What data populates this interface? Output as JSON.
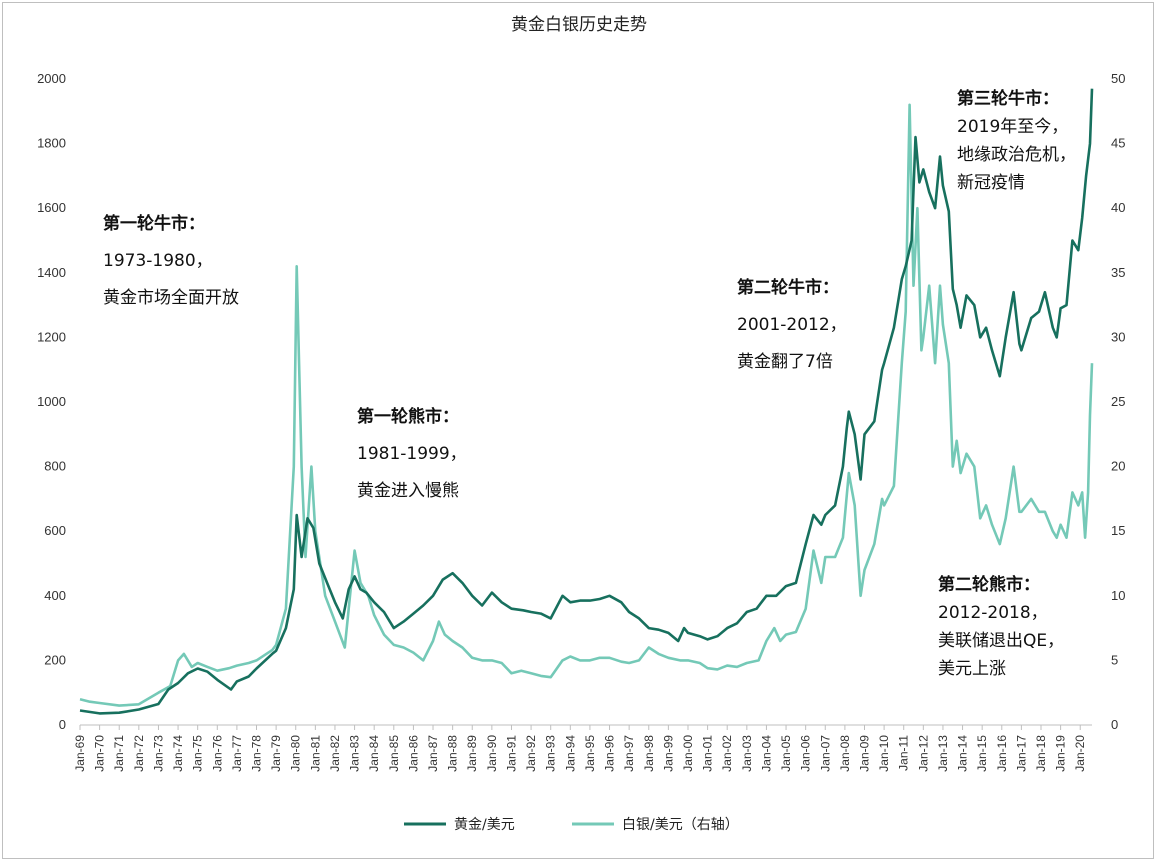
{
  "chart_data": {
    "type": "line",
    "title": "黄金白银历史走势",
    "xlabel": "",
    "ylabel": "",
    "x_range": [
      1969.0,
      2020.6
    ],
    "ylim_left": [
      0,
      2000
    ],
    "ylim_right": [
      0,
      50
    ],
    "y_ticks_left": [
      0,
      200,
      400,
      600,
      800,
      1000,
      1200,
      1400,
      1600,
      1800,
      2000
    ],
    "y_ticks_right": [
      0,
      5,
      10,
      15,
      20,
      25,
      30,
      35,
      40,
      45,
      50
    ],
    "x_tick_labels": [
      "Jan-69",
      "Jan-70",
      "Jan-71",
      "Jan-72",
      "Jan-73",
      "Jan-74",
      "Jan-75",
      "Jan-76",
      "Jan-77",
      "Jan-78",
      "Jan-79",
      "Jan-80",
      "Jan-81",
      "Jan-82",
      "Jan-83",
      "Jan-84",
      "Jan-85",
      "Jan-86",
      "Jan-87",
      "Jan-88",
      "Jan-89",
      "Jan-90",
      "Jan-91",
      "Jan-92",
      "Jan-93",
      "Jan-94",
      "Jan-95",
      "Jan-96",
      "Jan-97",
      "Jan-98",
      "Jan-99",
      "Jan-00",
      "Jan-01",
      "Jan-02",
      "Jan-03",
      "Jan-04",
      "Jan-05",
      "Jan-06",
      "Jan-07",
      "Jan-08",
      "Jan-09",
      "Jan-10",
      "Jan-11",
      "Jan-12",
      "Jan-13",
      "Jan-14",
      "Jan-15",
      "Jan-16",
      "Jan-17",
      "Jan-18",
      "Jan-19",
      "Jan-20"
    ],
    "legend_position": "bottom",
    "grid": false,
    "series": [
      {
        "name": "黄金/美元",
        "axis": "left",
        "color": "#17705e",
        "points": [
          [
            1969.0,
            45
          ],
          [
            1970.0,
            36
          ],
          [
            1971.0,
            38
          ],
          [
            1972.0,
            48
          ],
          [
            1973.0,
            65
          ],
          [
            1973.5,
            110
          ],
          [
            1974.0,
            130
          ],
          [
            1974.5,
            160
          ],
          [
            1975.0,
            175
          ],
          [
            1975.5,
            165
          ],
          [
            1976.0,
            140
          ],
          [
            1976.7,
            110
          ],
          [
            1977.0,
            135
          ],
          [
            1977.6,
            150
          ],
          [
            1978.0,
            175
          ],
          [
            1978.8,
            220
          ],
          [
            1979.0,
            230
          ],
          [
            1979.5,
            300
          ],
          [
            1979.9,
            420
          ],
          [
            1980.05,
            650
          ],
          [
            1980.3,
            520
          ],
          [
            1980.6,
            640
          ],
          [
            1980.9,
            610
          ],
          [
            1981.2,
            500
          ],
          [
            1981.6,
            440
          ],
          [
            1982.0,
            380
          ],
          [
            1982.4,
            330
          ],
          [
            1982.7,
            420
          ],
          [
            1983.0,
            460
          ],
          [
            1983.3,
            420
          ],
          [
            1983.6,
            410
          ],
          [
            1984.0,
            380
          ],
          [
            1984.5,
            350
          ],
          [
            1985.0,
            300
          ],
          [
            1985.5,
            320
          ],
          [
            1986.0,
            345
          ],
          [
            1986.5,
            370
          ],
          [
            1987.0,
            400
          ],
          [
            1987.5,
            450
          ],
          [
            1988.0,
            470
          ],
          [
            1988.5,
            440
          ],
          [
            1989.0,
            400
          ],
          [
            1989.5,
            370
          ],
          [
            1990.0,
            410
          ],
          [
            1990.5,
            380
          ],
          [
            1991.0,
            360
          ],
          [
            1991.6,
            355
          ],
          [
            1992.0,
            350
          ],
          [
            1992.5,
            345
          ],
          [
            1993.0,
            330
          ],
          [
            1993.6,
            400
          ],
          [
            1994.0,
            380
          ],
          [
            1994.5,
            385
          ],
          [
            1995.0,
            385
          ],
          [
            1995.5,
            390
          ],
          [
            1996.0,
            400
          ],
          [
            1996.6,
            380
          ],
          [
            1997.0,
            350
          ],
          [
            1997.5,
            330
          ],
          [
            1998.0,
            300
          ],
          [
            1998.5,
            295
          ],
          [
            1999.0,
            285
          ],
          [
            1999.5,
            260
          ],
          [
            1999.8,
            300
          ],
          [
            2000.0,
            285
          ],
          [
            2000.6,
            275
          ],
          [
            2001.0,
            265
          ],
          [
            2001.5,
            275
          ],
          [
            2002.0,
            300
          ],
          [
            2002.5,
            315
          ],
          [
            2003.0,
            350
          ],
          [
            2003.5,
            360
          ],
          [
            2004.0,
            400
          ],
          [
            2004.5,
            400
          ],
          [
            2005.0,
            430
          ],
          [
            2005.5,
            440
          ],
          [
            2006.0,
            560
          ],
          [
            2006.4,
            650
          ],
          [
            2006.8,
            620
          ],
          [
            2007.0,
            650
          ],
          [
            2007.5,
            680
          ],
          [
            2007.9,
            800
          ],
          [
            2008.1,
            920
          ],
          [
            2008.2,
            970
          ],
          [
            2008.5,
            900
          ],
          [
            2008.8,
            760
          ],
          [
            2009.0,
            900
          ],
          [
            2009.5,
            940
          ],
          [
            2009.9,
            1100
          ],
          [
            2010.0,
            1120
          ],
          [
            2010.5,
            1230
          ],
          [
            2010.9,
            1380
          ],
          [
            2011.1,
            1420
          ],
          [
            2011.4,
            1500
          ],
          [
            2011.6,
            1820
          ],
          [
            2011.8,
            1680
          ],
          [
            2012.0,
            1720
          ],
          [
            2012.3,
            1650
          ],
          [
            2012.6,
            1600
          ],
          [
            2012.85,
            1760
          ],
          [
            2013.0,
            1670
          ],
          [
            2013.3,
            1590
          ],
          [
            2013.5,
            1350
          ],
          [
            2013.7,
            1300
          ],
          [
            2013.9,
            1230
          ],
          [
            2014.2,
            1330
          ],
          [
            2014.6,
            1300
          ],
          [
            2014.9,
            1200
          ],
          [
            2015.2,
            1230
          ],
          [
            2015.5,
            1160
          ],
          [
            2015.9,
            1080
          ],
          [
            2016.2,
            1200
          ],
          [
            2016.6,
            1340
          ],
          [
            2016.9,
            1180
          ],
          [
            2017.0,
            1160
          ],
          [
            2017.5,
            1260
          ],
          [
            2017.9,
            1280
          ],
          [
            2018.2,
            1340
          ],
          [
            2018.6,
            1230
          ],
          [
            2018.8,
            1200
          ],
          [
            2019.0,
            1290
          ],
          [
            2019.3,
            1300
          ],
          [
            2019.6,
            1500
          ],
          [
            2019.9,
            1470
          ],
          [
            2020.1,
            1570
          ],
          [
            2020.3,
            1700
          ],
          [
            2020.5,
            1800
          ],
          [
            2020.6,
            1970
          ]
        ]
      },
      {
        "name": "白银/美元（右轴）",
        "axis": "right",
        "color": "#74c9b7",
        "points": [
          [
            1969.0,
            2.0
          ],
          [
            1969.5,
            1.8
          ],
          [
            1970.0,
            1.7
          ],
          [
            1971.0,
            1.5
          ],
          [
            1972.0,
            1.6
          ],
          [
            1973.0,
            2.5
          ],
          [
            1973.6,
            3.0
          ],
          [
            1974.0,
            5.0
          ],
          [
            1974.3,
            5.5
          ],
          [
            1974.7,
            4.5
          ],
          [
            1975.0,
            4.8
          ],
          [
            1975.5,
            4.5
          ],
          [
            1976.0,
            4.2
          ],
          [
            1976.6,
            4.4
          ],
          [
            1977.0,
            4.6
          ],
          [
            1977.6,
            4.8
          ],
          [
            1978.0,
            5.0
          ],
          [
            1978.8,
            5.8
          ],
          [
            1979.0,
            6.2
          ],
          [
            1979.5,
            9.0
          ],
          [
            1979.9,
            20.0
          ],
          [
            1980.05,
            35.5
          ],
          [
            1980.3,
            20.0
          ],
          [
            1980.5,
            13.0
          ],
          [
            1980.8,
            20.0
          ],
          [
            1981.0,
            15.0
          ],
          [
            1981.5,
            10.0
          ],
          [
            1982.0,
            8.0
          ],
          [
            1982.5,
            6.0
          ],
          [
            1982.7,
            9.0
          ],
          [
            1983.0,
            13.5
          ],
          [
            1983.3,
            11.0
          ],
          [
            1983.7,
            10.0
          ],
          [
            1984.0,
            8.5
          ],
          [
            1984.5,
            7.0
          ],
          [
            1985.0,
            6.2
          ],
          [
            1985.5,
            6.0
          ],
          [
            1986.0,
            5.6
          ],
          [
            1986.5,
            5.0
          ],
          [
            1987.0,
            6.5
          ],
          [
            1987.3,
            8.0
          ],
          [
            1987.6,
            7.0
          ],
          [
            1988.0,
            6.5
          ],
          [
            1988.5,
            6.0
          ],
          [
            1989.0,
            5.2
          ],
          [
            1989.5,
            5.0
          ],
          [
            1990.0,
            5.0
          ],
          [
            1990.5,
            4.8
          ],
          [
            1991.0,
            4.0
          ],
          [
            1991.5,
            4.2
          ],
          [
            1992.0,
            4.0
          ],
          [
            1992.5,
            3.8
          ],
          [
            1993.0,
            3.7
          ],
          [
            1993.6,
            5.0
          ],
          [
            1994.0,
            5.3
          ],
          [
            1994.5,
            5.0
          ],
          [
            1995.0,
            5.0
          ],
          [
            1995.5,
            5.2
          ],
          [
            1996.0,
            5.2
          ],
          [
            1996.6,
            4.9
          ],
          [
            1997.0,
            4.8
          ],
          [
            1997.5,
            5.0
          ],
          [
            1998.0,
            6.0
          ],
          [
            1998.5,
            5.5
          ],
          [
            1999.0,
            5.2
          ],
          [
            1999.6,
            5.0
          ],
          [
            2000.0,
            5.0
          ],
          [
            2000.6,
            4.8
          ],
          [
            2001.0,
            4.4
          ],
          [
            2001.5,
            4.3
          ],
          [
            2002.0,
            4.6
          ],
          [
            2002.5,
            4.5
          ],
          [
            2003.0,
            4.8
          ],
          [
            2003.6,
            5.0
          ],
          [
            2004.0,
            6.5
          ],
          [
            2004.4,
            7.5
          ],
          [
            2004.7,
            6.5
          ],
          [
            2005.0,
            7.0
          ],
          [
            2005.5,
            7.2
          ],
          [
            2006.0,
            9.0
          ],
          [
            2006.4,
            13.5
          ],
          [
            2006.8,
            11.0
          ],
          [
            2007.0,
            13.0
          ],
          [
            2007.5,
            13.0
          ],
          [
            2007.9,
            14.5
          ],
          [
            2008.2,
            19.5
          ],
          [
            2008.5,
            17.0
          ],
          [
            2008.8,
            10.0
          ],
          [
            2009.0,
            12.0
          ],
          [
            2009.5,
            14.0
          ],
          [
            2009.9,
            17.5
          ],
          [
            2010.0,
            17.0
          ],
          [
            2010.5,
            18.5
          ],
          [
            2010.9,
            28.0
          ],
          [
            2011.1,
            32.0
          ],
          [
            2011.3,
            48.0
          ],
          [
            2011.5,
            34.0
          ],
          [
            2011.7,
            40.0
          ],
          [
            2011.9,
            29.0
          ],
          [
            2012.0,
            30.0
          ],
          [
            2012.3,
            34.0
          ],
          [
            2012.6,
            28.0
          ],
          [
            2012.85,
            34.0
          ],
          [
            2013.0,
            31.0
          ],
          [
            2013.3,
            28.0
          ],
          [
            2013.5,
            20.0
          ],
          [
            2013.7,
            22.0
          ],
          [
            2013.9,
            19.5
          ],
          [
            2014.2,
            21.0
          ],
          [
            2014.6,
            20.0
          ],
          [
            2014.9,
            16.0
          ],
          [
            2015.2,
            17.0
          ],
          [
            2015.5,
            15.5
          ],
          [
            2015.9,
            14.0
          ],
          [
            2016.2,
            16.0
          ],
          [
            2016.6,
            20.0
          ],
          [
            2016.9,
            16.5
          ],
          [
            2017.0,
            16.5
          ],
          [
            2017.5,
            17.5
          ],
          [
            2017.9,
            16.5
          ],
          [
            2018.2,
            16.5
          ],
          [
            2018.6,
            15.0
          ],
          [
            2018.8,
            14.5
          ],
          [
            2019.0,
            15.5
          ],
          [
            2019.3,
            14.5
          ],
          [
            2019.6,
            18.0
          ],
          [
            2019.9,
            17.0
          ],
          [
            2020.1,
            18.0
          ],
          [
            2020.25,
            14.5
          ],
          [
            2020.4,
            18.0
          ],
          [
            2020.5,
            24.0
          ],
          [
            2020.6,
            28.0
          ]
        ]
      }
    ],
    "annotations": [
      {
        "title": "第一轮牛市：",
        "lines": [
          "1973-1980，",
          "黄金市场全面开放"
        ]
      },
      {
        "title": "第一轮熊市：",
        "lines": [
          "1981-1999，",
          "黄金进入慢熊"
        ]
      },
      {
        "title": "第二轮牛市：",
        "lines": [
          "2001-2012，",
          "黄金翻了7倍"
        ]
      },
      {
        "title": "第三轮牛市：",
        "lines": [
          "2019年至今，",
          "地缘政治危机，",
          "新冠疫情"
        ]
      },
      {
        "title": "第二轮熊市：",
        "lines": [
          "2012-2018，",
          "美联储退出QE，",
          "美元上涨"
        ]
      }
    ]
  }
}
